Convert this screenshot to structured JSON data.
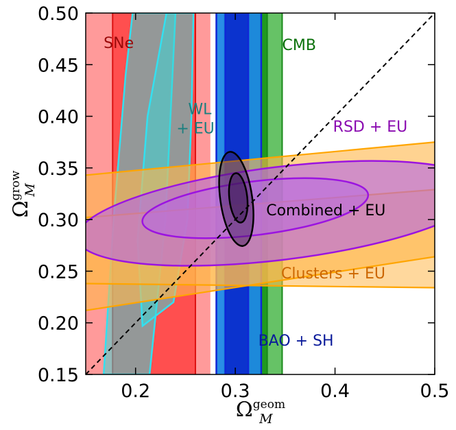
{
  "chart_data": {
    "type": "contour",
    "title": "",
    "xlabel": {
      "base": "Ω",
      "sub": "M",
      "sup": "geom"
    },
    "ylabel": {
      "base": "Ω",
      "sub": "M",
      "sup": "grow"
    },
    "xlim": [
      0.15,
      0.5
    ],
    "ylim": [
      0.15,
      0.5
    ],
    "xticks": [
      0.2,
      0.3,
      0.4,
      0.5
    ],
    "yticks": [
      0.15,
      0.2,
      0.25,
      0.3,
      0.35,
      0.4,
      0.45,
      0.5
    ],
    "xtick_labels": [
      "0.2",
      "0.3",
      "0.4",
      "0.5"
    ],
    "ytick_labels": [
      "0.15",
      "0.20",
      "0.25",
      "0.30",
      "0.35",
      "0.40",
      "0.45",
      "0.50"
    ],
    "reference_line": {
      "label": "",
      "x": [
        0.15,
        0.5
      ],
      "y": [
        0.15,
        0.5
      ],
      "style": "dashed",
      "color": "#000000"
    },
    "series": [
      {
        "name": "SNe",
        "label": "SNe",
        "label_color": "#9a0a0a",
        "outer_color": "#ff9a9a",
        "inner_color": "#ff4f4f",
        "line_color": "#dd1111",
        "outer_x": [
          0.15,
          0.275
        ],
        "inner_x": [
          0.177,
          0.26
        ],
        "label_at": [
          0.168,
          0.466
        ]
      },
      {
        "name": "WL + EU",
        "label_lines": [
          "WL",
          "+ EU"
        ],
        "label_color": "#1a7f7f",
        "fill_color": "#3cd5d5",
        "line_color": "#33e0f0",
        "outer": [
          [
            0.197,
            0.5
          ],
          [
            0.24,
            0.5
          ],
          [
            0.236,
            0.42
          ],
          [
            0.23,
            0.3
          ],
          [
            0.214,
            0.15
          ],
          [
            0.168,
            0.15
          ],
          [
            0.178,
            0.3
          ],
          [
            0.19,
            0.44
          ]
        ],
        "inner": [
          [
            0.231,
            0.5
          ],
          [
            0.258,
            0.5
          ],
          [
            0.256,
            0.4
          ],
          [
            0.252,
            0.3
          ],
          [
            0.238,
            0.22
          ],
          [
            0.207,
            0.197
          ],
          [
            0.202,
            0.28
          ],
          [
            0.212,
            0.4
          ]
        ],
        "label_at": [
          0.241,
          0.402
        ]
      },
      {
        "name": "CMB",
        "label": "CMB",
        "label_color": "#0a700a",
        "outer_color": "#66c266",
        "inner_color": "#1f9a1f",
        "line_color": "#1a8a1a",
        "outer_x": [
          0.289,
          0.347
        ],
        "inner_x": [
          0.295,
          0.332
        ],
        "label_at": [
          0.347,
          0.464
        ]
      },
      {
        "name": "BAO + SH",
        "label": "BAO + SH",
        "label_color": "#0a1a9a",
        "outer_color": "#1e88e5",
        "inner_color": "#0a2acc",
        "line_color": "#1026d6",
        "outer_x": [
          0.281,
          0.326
        ],
        "inner_x": [
          0.29,
          0.313
        ],
        "label_at": [
          0.323,
          0.178
        ]
      },
      {
        "name": "Clusters + EU",
        "label": "Clusters + EU",
        "label_color": "#cc6600",
        "fill_color": "#ffb84d",
        "line_color": "#ffa500",
        "outer_band": {
          "upper": [
            [
              0.15,
              0.343
            ],
            [
              0.5,
              0.375
            ]
          ],
          "lower": [
            [
              0.15,
              0.212
            ],
            [
              0.5,
              0.264
            ]
          ]
        },
        "inner_band": {
          "upper": [
            [
              0.15,
              0.302
            ],
            [
              0.5,
              0.329
            ]
          ],
          "lower": [
            [
              0.15,
              0.238
            ],
            [
              0.5,
              0.234
            ]
          ]
        },
        "label_at": [
          0.346,
          0.243
        ]
      },
      {
        "name": "RSD + EU",
        "label": "RSD + EU",
        "label_color": "#8a0ab0",
        "fill_color": "#b565e6",
        "line_color": "#9b14e0",
        "outer_ellipse": {
          "cx": 0.345,
          "cy": 0.306,
          "rx": 0.205,
          "ry": 0.045,
          "angle_deg": 7
        },
        "inner_ellipse": {
          "cx": 0.32,
          "cy": 0.311,
          "rx": 0.114,
          "ry": 0.026,
          "angle_deg": 7
        },
        "label_at": [
          0.398,
          0.385
        ]
      },
      {
        "name": "Combined + EU",
        "label": "Combined + EU",
        "label_color": "#000000",
        "fill_color": "#3a1a55",
        "line_color": "#000000",
        "outer_ellipse": {
          "cx": 0.301,
          "cy": 0.32,
          "rx": 0.016,
          "ry": 0.046,
          "angle_deg": 8
        },
        "inner_ellipse": {
          "cx": 0.303,
          "cy": 0.321,
          "rx": 0.009,
          "ry": 0.024,
          "angle_deg": 6
        },
        "label_at": [
          0.331,
          0.304
        ]
      }
    ]
  }
}
